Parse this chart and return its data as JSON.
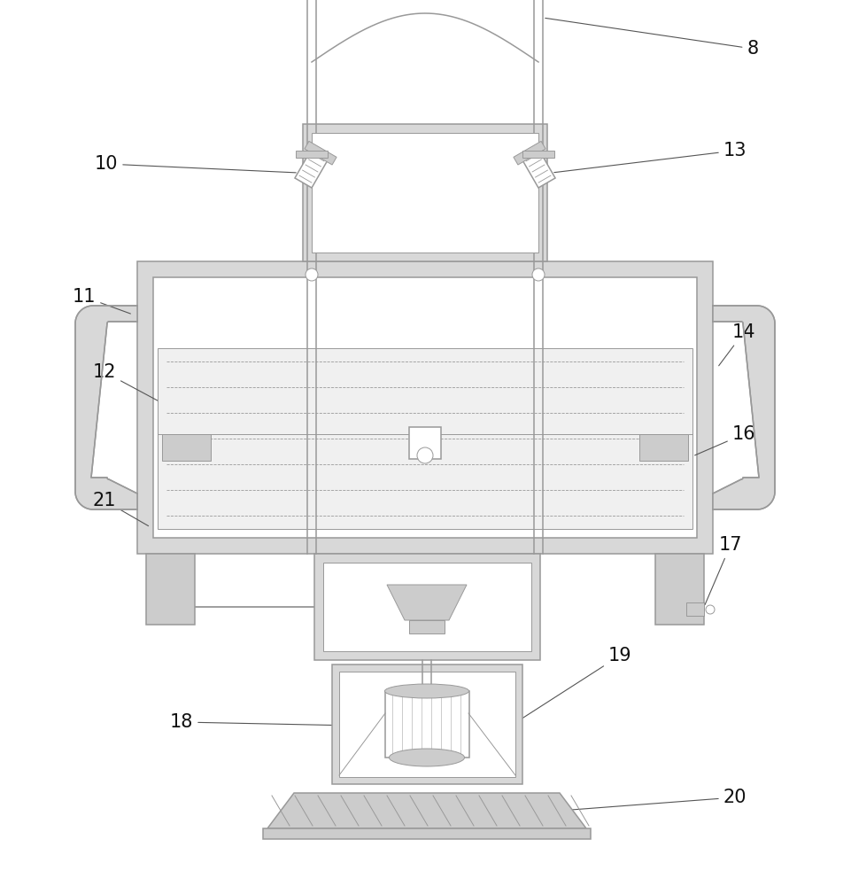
{
  "bg_color": "#ffffff",
  "gray": "#999999",
  "lgray": "#cccccc",
  "dgray": "#666666",
  "fill_g": "#d8d8d8",
  "lw_thin": 0.7,
  "lw_med": 1.1,
  "lw_thick": 1.5
}
